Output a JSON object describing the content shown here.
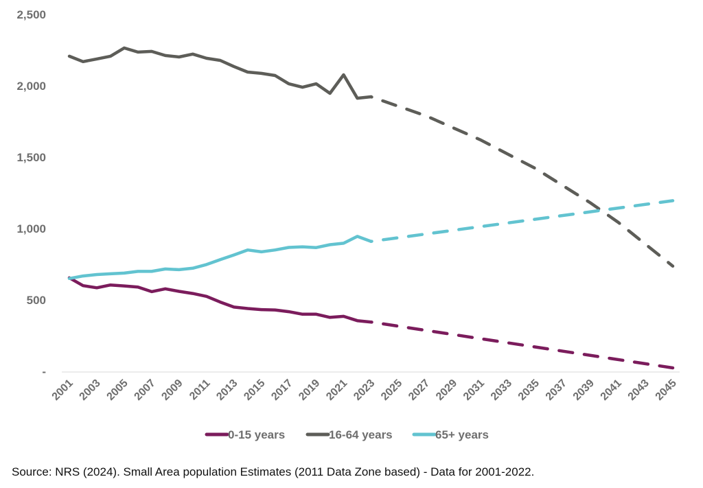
{
  "chart_data": {
    "type": "line",
    "title": "",
    "xlabel": "",
    "ylabel": "",
    "ylim": [
      0,
      2500
    ],
    "yticks": [
      0,
      500,
      1000,
      1500,
      2000,
      2500
    ],
    "ytick_labels": [
      "-",
      "500",
      "1,000",
      "1,500",
      "2,000",
      "2,500"
    ],
    "xlim": [
      2001,
      2045
    ],
    "xtick_labels": [
      "2001",
      "2003",
      "2005",
      "2007",
      "2009",
      "2011",
      "2013",
      "2015",
      "2017",
      "2019",
      "2021",
      "2023",
      "2025",
      "2027",
      "2029",
      "2031",
      "2033",
      "2035",
      "2037",
      "2039",
      "2041",
      "2043",
      "2045"
    ],
    "grid": false,
    "legend_position": "bottom",
    "series": [
      {
        "name": "0-15 years",
        "color": "#7b1c5c",
        "observed": {
          "x": [
            2001,
            2002,
            2003,
            2004,
            2005,
            2006,
            2007,
            2008,
            2009,
            2010,
            2011,
            2012,
            2013,
            2014,
            2015,
            2016,
            2017,
            2018,
            2019,
            2020,
            2021,
            2022,
            2023
          ],
          "y": [
            655,
            600,
            585,
            605,
            598,
            590,
            558,
            578,
            560,
            545,
            525,
            485,
            450,
            440,
            432,
            430,
            418,
            400,
            400,
            378,
            385,
            355,
            345
          ]
        },
        "projected": {
          "x": [
            2023,
            2045
          ],
          "y": [
            345,
            24
          ]
        }
      },
      {
        "name": "16-64 years",
        "color": "#5d5d58",
        "observed": {
          "x": [
            2001,
            2002,
            2003,
            2004,
            2005,
            2006,
            2007,
            2008,
            2009,
            2010,
            2011,
            2012,
            2013,
            2014,
            2015,
            2016,
            2017,
            2018,
            2019,
            2020,
            2021,
            2022,
            2023
          ],
          "y": [
            2207,
            2169,
            2188,
            2207,
            2265,
            2236,
            2241,
            2212,
            2202,
            2222,
            2193,
            2178,
            2135,
            2096,
            2087,
            2072,
            2014,
            1990,
            2014,
            1947,
            2077,
            1913,
            1923
          ]
        },
        "projected": {
          "x": [
            2023,
            2027,
            2031,
            2035,
            2039,
            2041,
            2045
          ],
          "y": [
            1923,
            1790,
            1620,
            1420,
            1180,
            1045,
            737
          ]
        }
      },
      {
        "name": "65+ years",
        "color": "#62c3d0",
        "observed": {
          "x": [
            2001,
            2002,
            2003,
            2004,
            2005,
            2006,
            2007,
            2008,
            2009,
            2010,
            2011,
            2012,
            2013,
            2014,
            2015,
            2016,
            2017,
            2018,
            2019,
            2020,
            2021,
            2022,
            2023
          ],
          "y": [
            650,
            668,
            678,
            683,
            688,
            700,
            700,
            717,
            712,
            722,
            748,
            782,
            815,
            850,
            837,
            850,
            868,
            872,
            867,
            887,
            897,
            945,
            910
          ]
        },
        "projected": {
          "x": [
            2023,
            2045
          ],
          "y": [
            910,
            1195
          ]
        }
      }
    ]
  },
  "source_note": "Source: NRS (2024). Small Area population Estimates (2011 Data Zone based) - Data for 2001-2022."
}
